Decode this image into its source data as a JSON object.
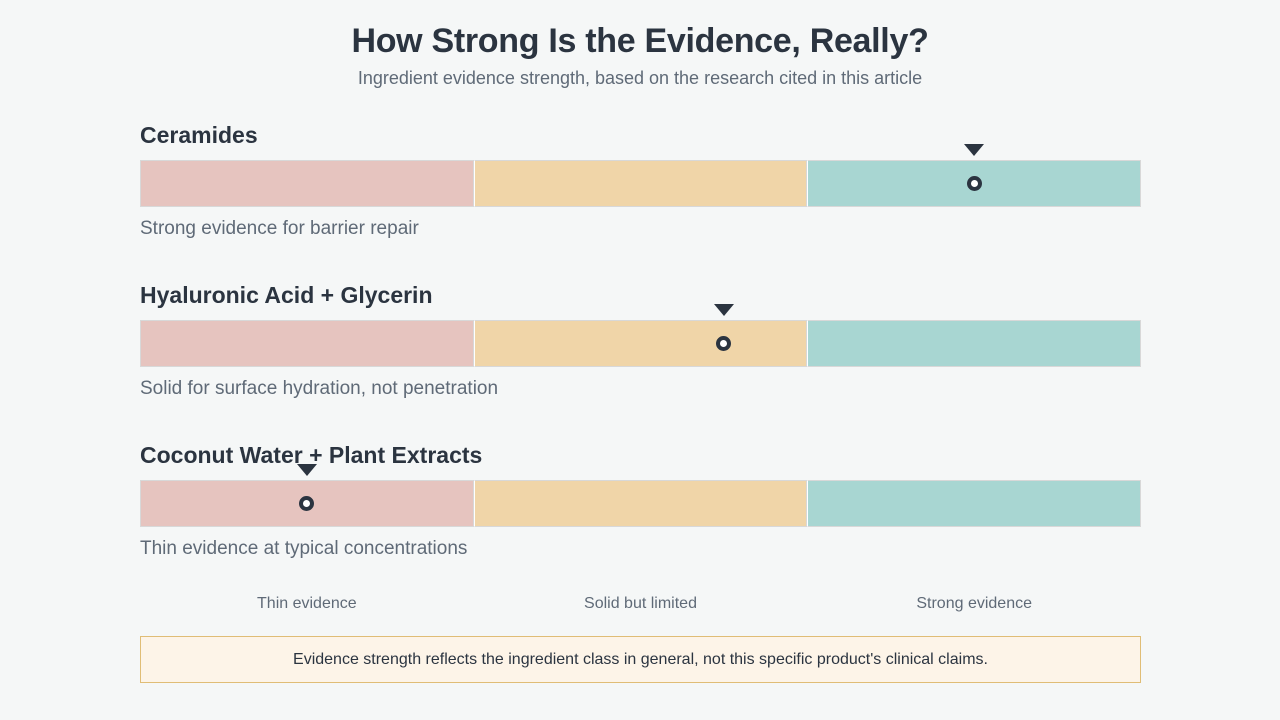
{
  "title": "How Strong Is the Evidence, Really?",
  "subtitle": "Ingredient evidence strength, based on the research cited in this article",
  "colors": {
    "thin": "#e6c4bf",
    "solid": "#f0d5a8",
    "strong": "#a8d6d2",
    "marker": "#2b3440"
  },
  "chart_data": {
    "type": "bar",
    "scale_categories": [
      "Thin evidence",
      "Solid but limited",
      "Strong evidence"
    ],
    "xlim": [
      0,
      3
    ],
    "series": [
      {
        "name": "Ceramides",
        "value": 2.5,
        "note": "Strong evidence for barrier repair"
      },
      {
        "name": "Hyaluronic Acid + Glycerin",
        "value": 1.75,
        "note": "Solid for surface hydration, not penetration"
      },
      {
        "name": "Coconut Water + Plant Extracts",
        "value": 0.5,
        "note": "Thin evidence at typical concentrations"
      }
    ]
  },
  "footnote": "Evidence strength reflects the ingredient class in general, not this specific product's clinical claims."
}
